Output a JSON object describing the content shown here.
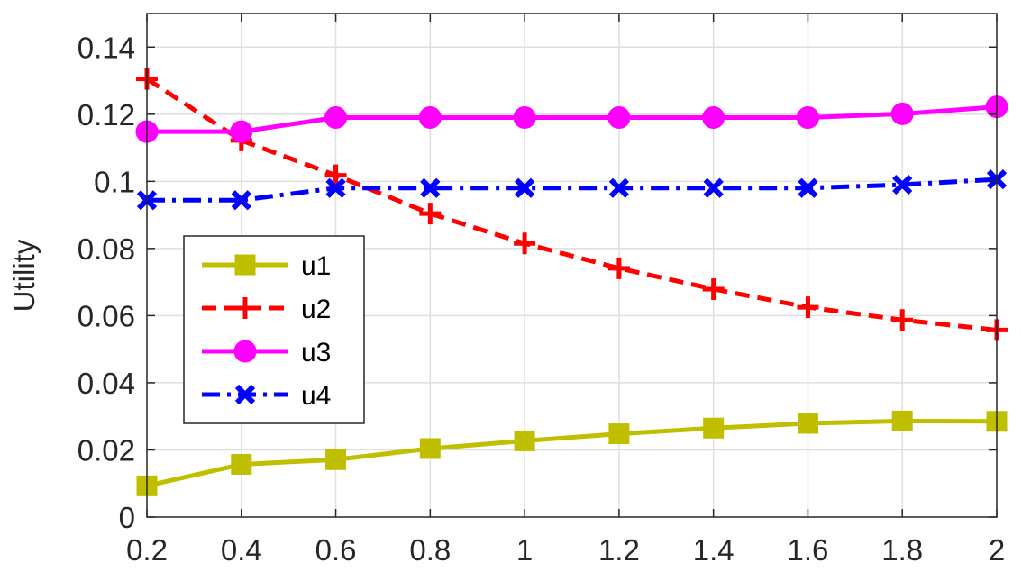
{
  "chart_data": {
    "type": "line",
    "title": "",
    "xlabel": "",
    "ylabel": "Utility",
    "x": [
      0.2,
      0.4,
      0.6,
      0.8,
      1.0,
      1.2,
      1.4,
      1.6,
      1.8,
      2.0
    ],
    "x_ticks": [
      "0.2",
      "0.4",
      "0.6",
      "0.8",
      "1",
      "1.2",
      "1.4",
      "1.6",
      "1.8",
      "2"
    ],
    "y_ticks": [
      "0",
      "0.02",
      "0.04",
      "0.06",
      "0.08",
      "0.1",
      "0.12",
      "0.14"
    ],
    "xlim": [
      0.2,
      2.0
    ],
    "ylim": [
      0,
      0.15
    ],
    "grid": true,
    "legend_position": "left-middle",
    "series": [
      {
        "name": "u1",
        "color": "#bfbf00",
        "line_style": "solid",
        "marker": "square",
        "values": [
          0.0093,
          0.0157,
          0.0171,
          0.0204,
          0.0227,
          0.0248,
          0.0265,
          0.0279,
          0.0286,
          0.0285
        ]
      },
      {
        "name": "u2",
        "color": "#ff0000",
        "line_style": "dashed",
        "marker": "plus",
        "values": [
          0.1305,
          0.1122,
          0.1018,
          0.0904,
          0.0815,
          0.0741,
          0.0679,
          0.0625,
          0.0587,
          0.0557
        ]
      },
      {
        "name": "u3",
        "color": "#ff00ff",
        "line_style": "solid",
        "marker": "circle",
        "values": [
          0.1148,
          0.1148,
          0.119,
          0.119,
          0.119,
          0.119,
          0.119,
          0.119,
          0.1201,
          0.1222
        ]
      },
      {
        "name": "u4",
        "color": "#0000ff",
        "line_style": "dashdot",
        "marker": "x",
        "values": [
          0.0944,
          0.0944,
          0.098,
          0.098,
          0.098,
          0.098,
          0.098,
          0.098,
          0.099,
          0.1006
        ]
      }
    ]
  }
}
